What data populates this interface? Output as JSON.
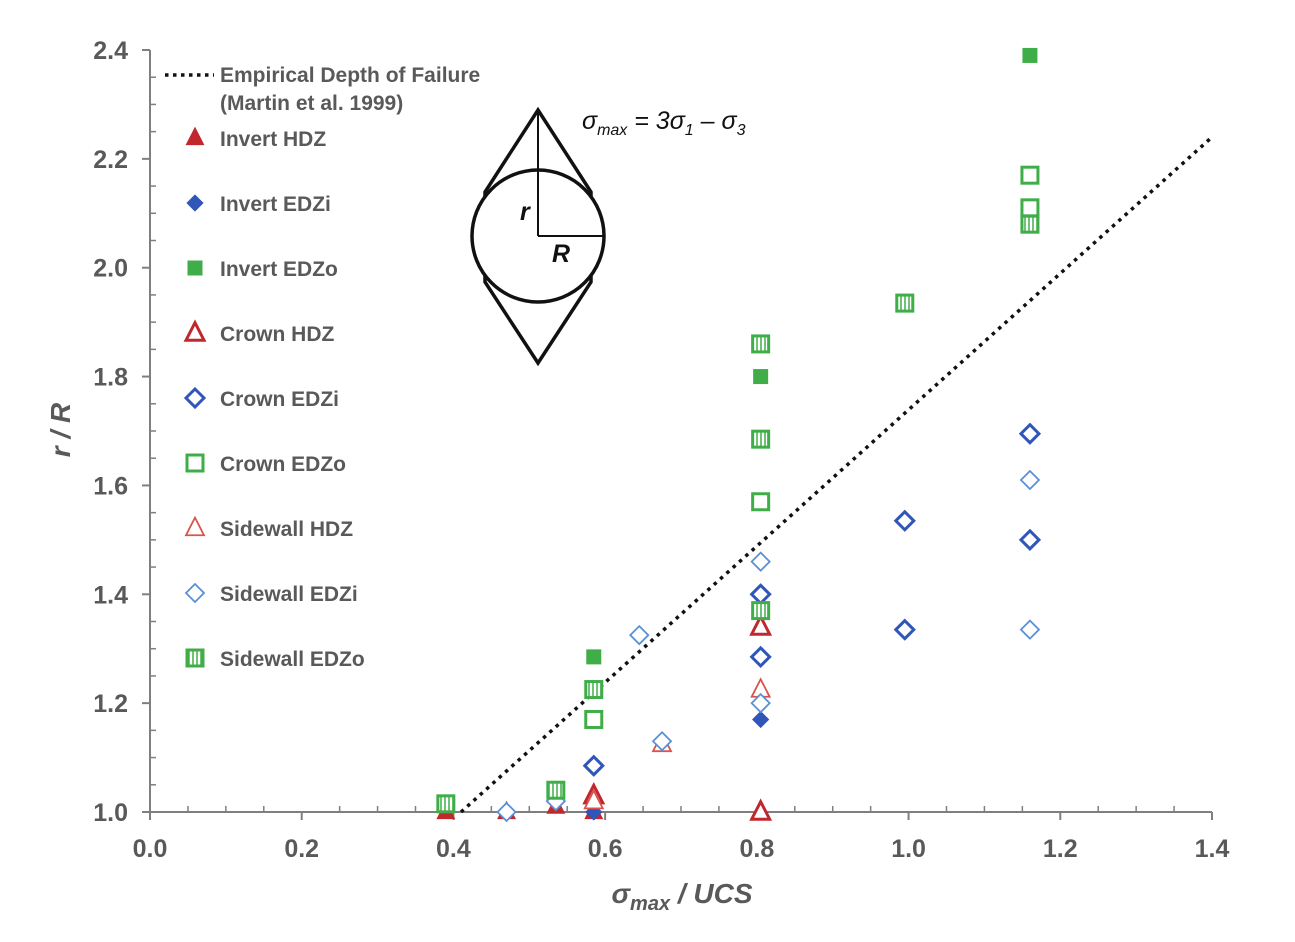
{
  "colors": {
    "red": "#c0282d",
    "red_light": "#d9534f",
    "blue": "#2f56b8",
    "blue_light": "#5b8fd6",
    "green": "#3fae49",
    "axis": "#7f7f7f",
    "text": "#595959"
  },
  "annotation": {
    "formula_prefix": "σ",
    "formula_sub": "max",
    "formula_rest": " = 3σ",
    "formula_sub1": "1",
    "formula_dash": " – σ",
    "formula_sub3": "3",
    "label_r": "r",
    "label_R": "R",
    "diagram_icon": "tunnel-breakout-diagram-icon"
  },
  "chart_data": {
    "type": "scatter",
    "title": "",
    "xlabel_main": "σ",
    "xlabel_sub": "max",
    "xlabel_rest": " / UCS",
    "ylabel": "r / R",
    "xlim": [
      0.0,
      1.4
    ],
    "ylim": [
      1.0,
      2.4
    ],
    "x_ticks": [
      "0.0",
      "0.2",
      "0.4",
      "0.6",
      "0.8",
      "1.0",
      "1.2",
      "1.4"
    ],
    "y_ticks": [
      "1.0",
      "1.2",
      "1.4",
      "1.6",
      "1.8",
      "2.0",
      "2.2",
      "2.4"
    ],
    "grid": false,
    "legend_position": "top-left",
    "line": {
      "name_line1": "Empirical Depth of Failure",
      "name_line2": "(Martin et al. 1999)",
      "style": "dotted",
      "points": [
        [
          0.41,
          1.0
        ],
        [
          1.4,
          2.24
        ]
      ]
    },
    "series": [
      {
        "name": "Invert HDZ",
        "marker": "triangle",
        "fill": "solid",
        "color": "#c0282d",
        "points": [
          [
            0.39,
            1.0
          ],
          [
            0.47,
            1.0
          ],
          [
            0.535,
            1.01
          ],
          [
            0.585,
            1.0
          ],
          [
            0.805,
            1.0
          ]
        ]
      },
      {
        "name": "Invert EDZi",
        "marker": "diamond-small",
        "fill": "solid",
        "color": "#2f56b8",
        "points": [
          [
            0.47,
            1.0
          ],
          [
            0.585,
            1.0
          ],
          [
            0.805,
            1.17
          ]
        ]
      },
      {
        "name": "Invert EDZo",
        "marker": "square-small",
        "fill": "solid",
        "color": "#3fae49",
        "points": [
          [
            0.585,
            1.285
          ],
          [
            0.805,
            1.8
          ],
          [
            1.16,
            2.39
          ]
        ]
      },
      {
        "name": "Crown HDZ",
        "marker": "triangle",
        "fill": "open",
        "color": "#c0282d",
        "points": [
          [
            0.585,
            1.03
          ],
          [
            0.805,
            1.34
          ],
          [
            0.805,
            1.0
          ]
        ]
      },
      {
        "name": "Crown EDZi",
        "marker": "diamond",
        "fill": "open",
        "color": "#2f56b8",
        "points": [
          [
            0.585,
            1.085
          ],
          [
            0.805,
            1.285
          ],
          [
            0.805,
            1.4
          ],
          [
            0.995,
            1.535
          ],
          [
            0.995,
            1.335
          ],
          [
            1.16,
            1.695
          ],
          [
            1.16,
            1.5
          ]
        ]
      },
      {
        "name": "Crown EDZo",
        "marker": "square",
        "fill": "open",
        "color": "#3fae49",
        "points": [
          [
            0.585,
            1.17
          ],
          [
            0.805,
            1.57
          ],
          [
            1.16,
            2.17
          ],
          [
            1.16,
            2.11
          ]
        ]
      },
      {
        "name": "Sidewall HDZ",
        "marker": "triangle",
        "fill": "light",
        "color": "#d9534f",
        "points": [
          [
            0.585,
            1.02
          ],
          [
            0.675,
            1.125
          ],
          [
            0.805,
            1.225
          ]
        ]
      },
      {
        "name": "Sidewall EDZi",
        "marker": "diamond",
        "fill": "light",
        "color": "#5b8fd6",
        "points": [
          [
            0.47,
            1.0
          ],
          [
            0.535,
            1.02
          ],
          [
            0.645,
            1.325
          ],
          [
            0.675,
            1.13
          ],
          [
            0.805,
            1.2
          ],
          [
            0.805,
            1.46
          ],
          [
            1.16,
            1.61
          ],
          [
            1.16,
            1.335
          ]
        ]
      },
      {
        "name": "Sidewall EDZo",
        "marker": "square",
        "fill": "hatched",
        "color": "#3fae49",
        "points": [
          [
            0.39,
            1.015
          ],
          [
            0.535,
            1.04
          ],
          [
            0.585,
            1.225
          ],
          [
            0.805,
            1.86
          ],
          [
            0.805,
            1.685
          ],
          [
            0.805,
            1.37
          ],
          [
            0.995,
            1.935
          ],
          [
            1.16,
            2.08
          ]
        ]
      }
    ]
  }
}
